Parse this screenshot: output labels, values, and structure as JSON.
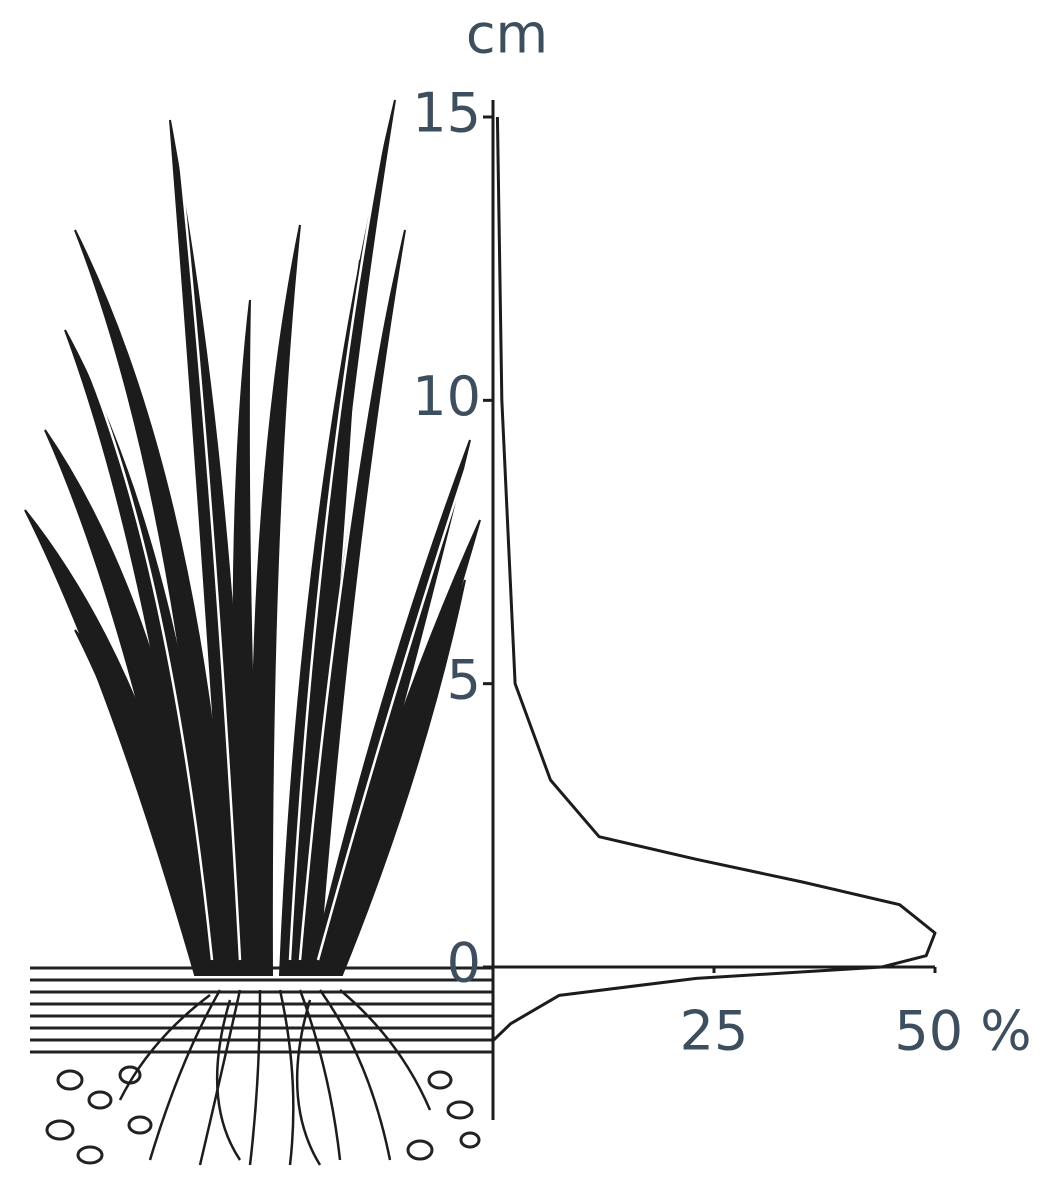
{
  "chart_data": {
    "type": "line",
    "ylabel": "cm",
    "x": [
      0.5,
      1,
      2.5,
      6.5,
      12,
      23,
      35,
      46,
      50,
      49,
      44,
      23,
      7.5,
      2,
      0
    ],
    "values": [
      15,
      10,
      5,
      3.3,
      2.3,
      1.9,
      1.5,
      1.1,
      0.6,
      0.2,
      0,
      -0.2,
      -0.5,
      -1.0,
      -1.3
    ],
    "color": "#1c1c1c",
    "xlim": [
      0,
      50
    ],
    "xticks": [
      25,
      {
        "value": 50,
        "label": "50 %"
      }
    ],
    "ylim": [
      -2.7,
      15.3
    ],
    "yticks": [
      0,
      5,
      10,
      15
    ]
  }
}
